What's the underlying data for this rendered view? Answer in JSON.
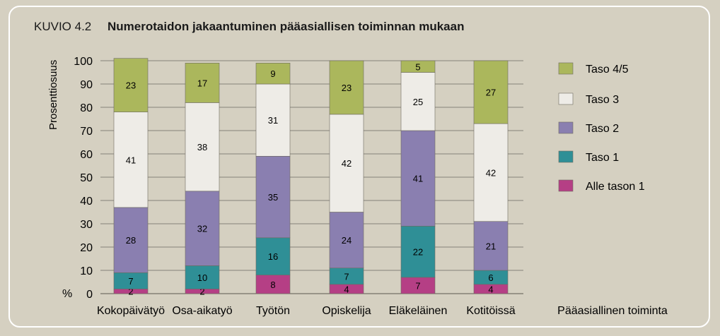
{
  "figure": {
    "label": "KUVIO 4.2",
    "title": "Numerotaidon jakaantuminen pääasiallisen toiminnan mukaan"
  },
  "chart_data": {
    "type": "bar",
    "stacked": true,
    "title": "Numerotaidon jakaantuminen pääasiallisen toiminnan mukaan",
    "ylabel": "Prosenttiosuus",
    "yunit": "%",
    "xlabel": "Pääasiallinen toiminta",
    "ylim": [
      0,
      100
    ],
    "yticks": [
      "0",
      "10",
      "20",
      "30",
      "40",
      "50",
      "60",
      "70",
      "80",
      "90",
      "100"
    ],
    "grid": true,
    "legend_position": "right",
    "categories": [
      "Kokopäivätyö",
      "Osa-aikatyö",
      "Työtön",
      "Opiskelija",
      "Eläkeläinen",
      "Kotitöissä"
    ],
    "series": [
      {
        "name": "Alle tason 1",
        "color": "#b53f85",
        "values": [
          2,
          2,
          8,
          4,
          7,
          4
        ]
      },
      {
        "name": "Taso 1",
        "color": "#2f8f96",
        "values": [
          7,
          10,
          16,
          7,
          22,
          6
        ]
      },
      {
        "name": "Taso 2",
        "color": "#8a7fb0",
        "values": [
          28,
          32,
          35,
          24,
          41,
          21
        ]
      },
      {
        "name": "Taso 3",
        "color": "#eeece7",
        "values": [
          41,
          38,
          31,
          42,
          25,
          42
        ]
      },
      {
        "name": "Taso 4/5",
        "color": "#abb75c",
        "values": [
          23,
          17,
          9,
          23,
          5,
          27
        ]
      }
    ],
    "legend_order": [
      "Taso 4/5",
      "Taso 3",
      "Taso 2",
      "Taso 1",
      "Alle tason 1"
    ]
  }
}
